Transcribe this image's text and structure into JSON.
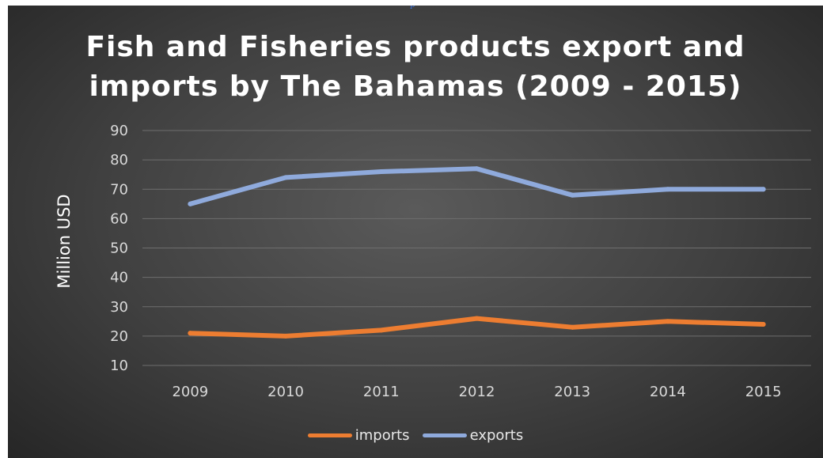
{
  "page": {
    "top_link_fragment": "p"
  },
  "chart_data": {
    "type": "line",
    "title": "Fish and Fisheries products export and imports by The Bahamas (2009 - 2015)",
    "title_lines": [
      "Fish and Fisheries products export and",
      "imports by The Bahamas (2009 - 2015)"
    ],
    "xlabel": "",
    "ylabel": "Million USD",
    "categories": [
      "2009",
      "2010",
      "2011",
      "2012",
      "2013",
      "2014",
      "2015"
    ],
    "ylim": [
      10,
      90
    ],
    "yticks": [
      10,
      20,
      30,
      40,
      50,
      60,
      70,
      80,
      90
    ],
    "grid": true,
    "legend_position": "bottom",
    "series": [
      {
        "name": "imports",
        "color": "#ed7d31",
        "values": [
          21,
          20,
          22,
          26,
          23,
          25,
          24
        ]
      },
      {
        "name": "exports",
        "color": "#8faadc",
        "values": [
          65,
          74,
          76,
          77,
          68,
          70,
          70
        ]
      }
    ]
  }
}
